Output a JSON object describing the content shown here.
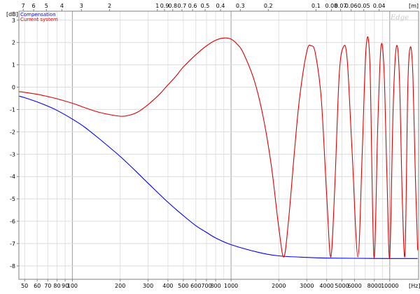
{
  "chart_data": {
    "type": "line",
    "title": "",
    "ylabel": "[dB]",
    "xlabel": "[Hz]",
    "top_axis_label": "[m]",
    "x_scale": "log",
    "xlim": [
      46,
      15200
    ],
    "ylim": [
      -8.6,
      3.4
    ],
    "grid": true,
    "legend_position": "top-left",
    "watermark": "Edge",
    "y_ticks": [
      3,
      2,
      1,
      0,
      -1,
      -2,
      -3,
      -4,
      -5,
      -6,
      -7,
      -8
    ],
    "y_tick_labels": [
      "3",
      "2",
      "1",
      "0",
      "-1",
      "-2",
      "-3",
      "-4",
      "-5",
      "-6",
      "-7",
      "-8"
    ],
    "x_ticks": [
      50,
      60,
      70,
      80,
      90,
      100,
      200,
      300,
      400,
      500,
      600,
      700,
      800,
      1000,
      2000,
      3000,
      4000,
      5000,
      6000,
      8000,
      10000
    ],
    "x_tick_labels": [
      "50",
      "60",
      "70",
      "80",
      "90",
      "100",
      "200",
      "300",
      "400",
      "500",
      "600",
      "700",
      "800",
      "1000",
      "2000",
      "3000",
      "4000",
      "5000",
      "6000",
      "8000",
      "10000"
    ],
    "x_major_lines": [
      100,
      1000,
      10000
    ],
    "top_ticks": [
      {
        "label": "7",
        "hz": 49
      },
      {
        "label": "6",
        "hz": 57
      },
      {
        "label": "5",
        "hz": 68.6
      },
      {
        "label": "4",
        "hz": 85.8
      },
      {
        "label": "3",
        "hz": 114
      },
      {
        "label": "2",
        "hz": 171.5
      },
      {
        "label": "1",
        "hz": 343
      },
      {
        "label": "0.9",
        "hz": 381
      },
      {
        "label": "0.8",
        "hz": 429
      },
      {
        "label": "0.7",
        "hz": 490
      },
      {
        "label": "0.6",
        "hz": 572
      },
      {
        "label": "0.5",
        "hz": 686
      },
      {
        "label": "0.4",
        "hz": 858
      },
      {
        "label": "0.3",
        "hz": 1143
      },
      {
        "label": "0.2",
        "hz": 1715
      },
      {
        "label": "0.1",
        "hz": 3430
      },
      {
        "label": "0.08",
        "hz": 4288
      },
      {
        "label": "0.07",
        "hz": 4900
      },
      {
        "label": "0.06",
        "hz": 5717
      },
      {
        "label": "0.05",
        "hz": 6860
      },
      {
        "label": "0.04",
        "hz": 8575
      }
    ],
    "series": [
      {
        "name": "Compensation",
        "color": "#0000ff",
        "x": [
          46,
          50,
          60,
          70,
          80,
          100,
          120,
          150,
          200,
          250,
          300,
          400,
          500,
          600,
          700,
          800,
          1000,
          1500,
          2000,
          3000,
          4000,
          6000,
          10000,
          15000
        ],
        "y": [
          -0.4,
          -0.47,
          -0.66,
          -0.85,
          -1.04,
          -1.43,
          -1.8,
          -2.35,
          -3.1,
          -3.75,
          -4.3,
          -5.15,
          -5.75,
          -6.2,
          -6.5,
          -6.75,
          -7.05,
          -7.4,
          -7.55,
          -7.62,
          -7.65,
          -7.66,
          -7.67,
          -7.67
        ]
      },
      {
        "name": "Current system",
        "color": "#e00000",
        "x": [
          46,
          50,
          60,
          70,
          80,
          100,
          120,
          150,
          200,
          230,
          260,
          300,
          350,
          400,
          450,
          500,
          600,
          700,
          800,
          900,
          1000,
          1100,
          1200,
          1400,
          1600,
          1800,
          2000,
          2150,
          2300,
          2500,
          2700,
          3000,
          3200,
          3400,
          3700,
          4000,
          4250,
          4500,
          4800,
          5100,
          5400,
          5800,
          6300,
          6700,
          7100,
          7500,
          7950,
          8400,
          8800,
          9200,
          9600,
          10000,
          10500,
          11000,
          11500,
          12000,
          12500,
          13000,
          13500,
          14000,
          14500,
          15000
        ],
        "y": [
          -0.2,
          -0.23,
          -0.32,
          -0.42,
          -0.52,
          -0.72,
          -0.92,
          -1.14,
          -1.3,
          -1.25,
          -1.1,
          -0.78,
          -0.35,
          0.1,
          0.5,
          0.9,
          1.45,
          1.85,
          2.1,
          2.2,
          2.15,
          1.9,
          1.5,
          0.3,
          -1.4,
          -3.6,
          -6.3,
          -7.6,
          -6.0,
          -3.0,
          -0.5,
          1.6,
          1.85,
          1.5,
          -0.5,
          -4.8,
          -7.6,
          -4.5,
          0.5,
          1.8,
          1.2,
          -3.0,
          -7.6,
          -3.0,
          1.8,
          1.0,
          -7.6,
          -1.8,
          1.8,
          0.8,
          -4.0,
          -7.6,
          -1.0,
          1.8,
          0.5,
          -5.0,
          -7.4,
          0.0,
          1.8,
          0.5,
          -4.0,
          -7.3
        ]
      }
    ]
  }
}
